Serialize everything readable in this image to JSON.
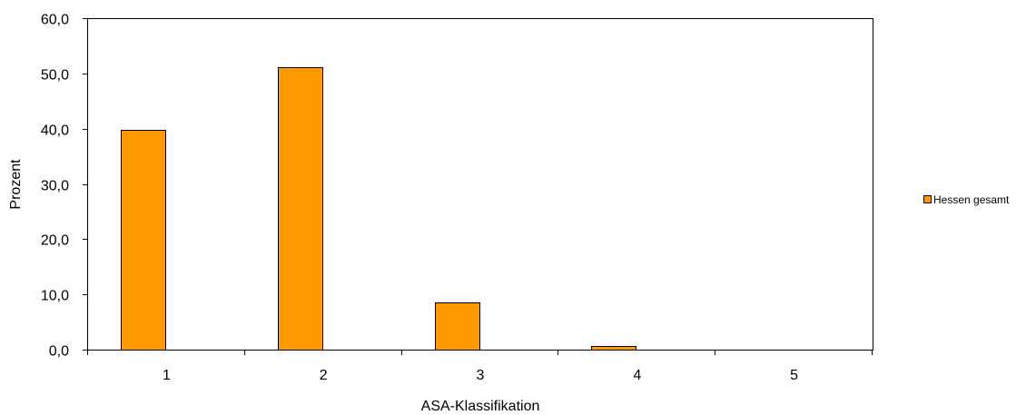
{
  "chart_data": {
    "type": "bar",
    "title": "",
    "xlabel": "ASA-Klassifikation",
    "ylabel": "Prozent",
    "categories": [
      "1",
      "2",
      "3",
      "4",
      "5"
    ],
    "series": [
      {
        "name": "Hessen gesamt",
        "values": [
          39.7,
          51.1,
          8.6,
          0.6,
          0.0
        ]
      }
    ],
    "ylim": [
      0,
      60
    ],
    "yticks": [
      "0,0",
      "10,0",
      "20,0",
      "30,0",
      "40,0",
      "50,0",
      "60,0"
    ],
    "grid": false,
    "legend_position": "right",
    "colors": {
      "bar": "#FF9900",
      "bar_border": "#000000"
    }
  }
}
